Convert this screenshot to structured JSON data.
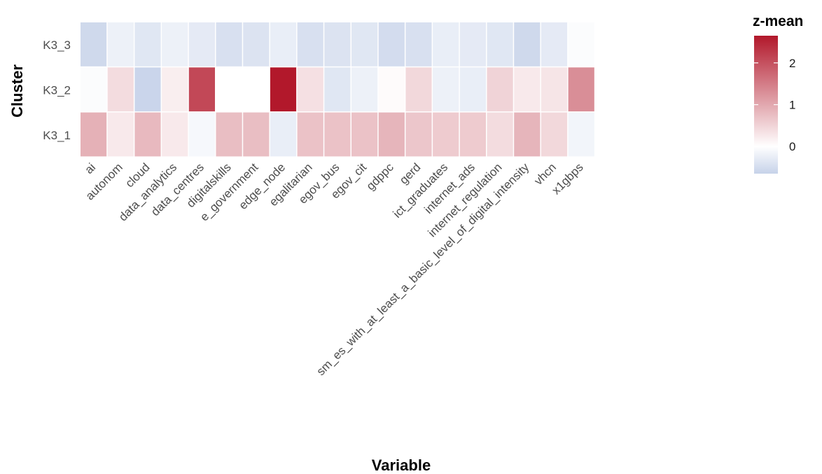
{
  "chart_data": {
    "type": "heatmap",
    "xlabel": "Variable",
    "ylabel": "Cluster",
    "x": [
      "ai",
      "autonom",
      "cloud",
      "data_analytics",
      "data_centres",
      "digitalskills",
      "e_government",
      "edge_node",
      "egalitarian",
      "egov_bus",
      "egov_cit",
      "gdppc",
      "gerd",
      "ict_graduates",
      "internet_ads",
      "internet_regulation",
      "sm_es_with_at_least_a_basic_level_of_digital_intensity",
      "vhcn",
      "x1gbps"
    ],
    "y": [
      "K3_3",
      "K3_2",
      "K3_1"
    ],
    "values": [
      [
        -0.55,
        -0.2,
        -0.35,
        -0.2,
        -0.3,
        -0.45,
        -0.4,
        -0.25,
        -0.45,
        -0.4,
        -0.35,
        -0.5,
        -0.45,
        -0.25,
        -0.3,
        -0.35,
        -0.55,
        -0.3,
        -0.05
      ],
      [
        -0.05,
        0.4,
        -0.6,
        0.2,
        2.1,
        0.0,
        0.0,
        2.65,
        0.35,
        -0.35,
        -0.2,
        0.05,
        0.45,
        -0.2,
        -0.25,
        0.5,
        0.25,
        0.3,
        1.3
      ],
      [
        0.9,
        0.25,
        0.8,
        0.25,
        -0.1,
        0.75,
        0.75,
        -0.25,
        0.7,
        0.7,
        0.7,
        0.85,
        0.65,
        0.6,
        0.6,
        0.4,
        0.85,
        0.45,
        -0.15
      ]
    ],
    "legend": {
      "title": "z-mean",
      "ticks": [
        0,
        1,
        2
      ],
      "range": [
        -0.65,
        2.65
      ],
      "colors": {
        "low": "#c6d2e9",
        "mid": "#ffffff",
        "high": "#b2182b"
      },
      "placement": "right"
    },
    "grid": false
  }
}
